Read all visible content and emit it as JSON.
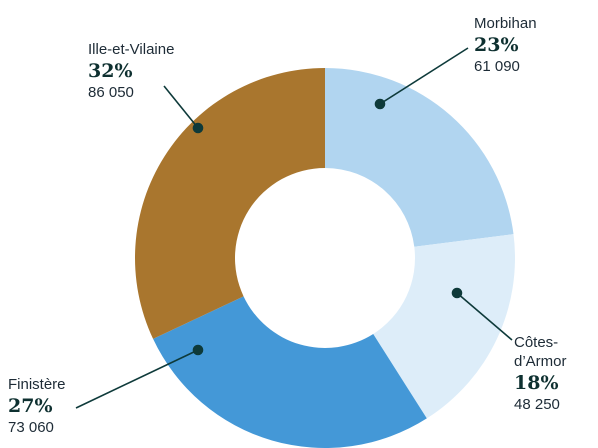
{
  "chart_data": {
    "type": "donut",
    "categories": [
      "Morbihan",
      "Côtes-d’Armor",
      "Finistère",
      "Ille-et-Vilaine"
    ],
    "values": [
      23,
      18,
      27,
      32
    ],
    "value_labels": [
      "23%",
      "18%",
      "27%",
      "32%"
    ],
    "counts": [
      61090,
      48250,
      73060,
      86050
    ],
    "count_labels": [
      "61 090",
      "48 250",
      "73 060",
      "86 050"
    ],
    "colors": [
      "#b1d5f0",
      "#ddedf9",
      "#4498d7",
      "#a9762e"
    ]
  }
}
